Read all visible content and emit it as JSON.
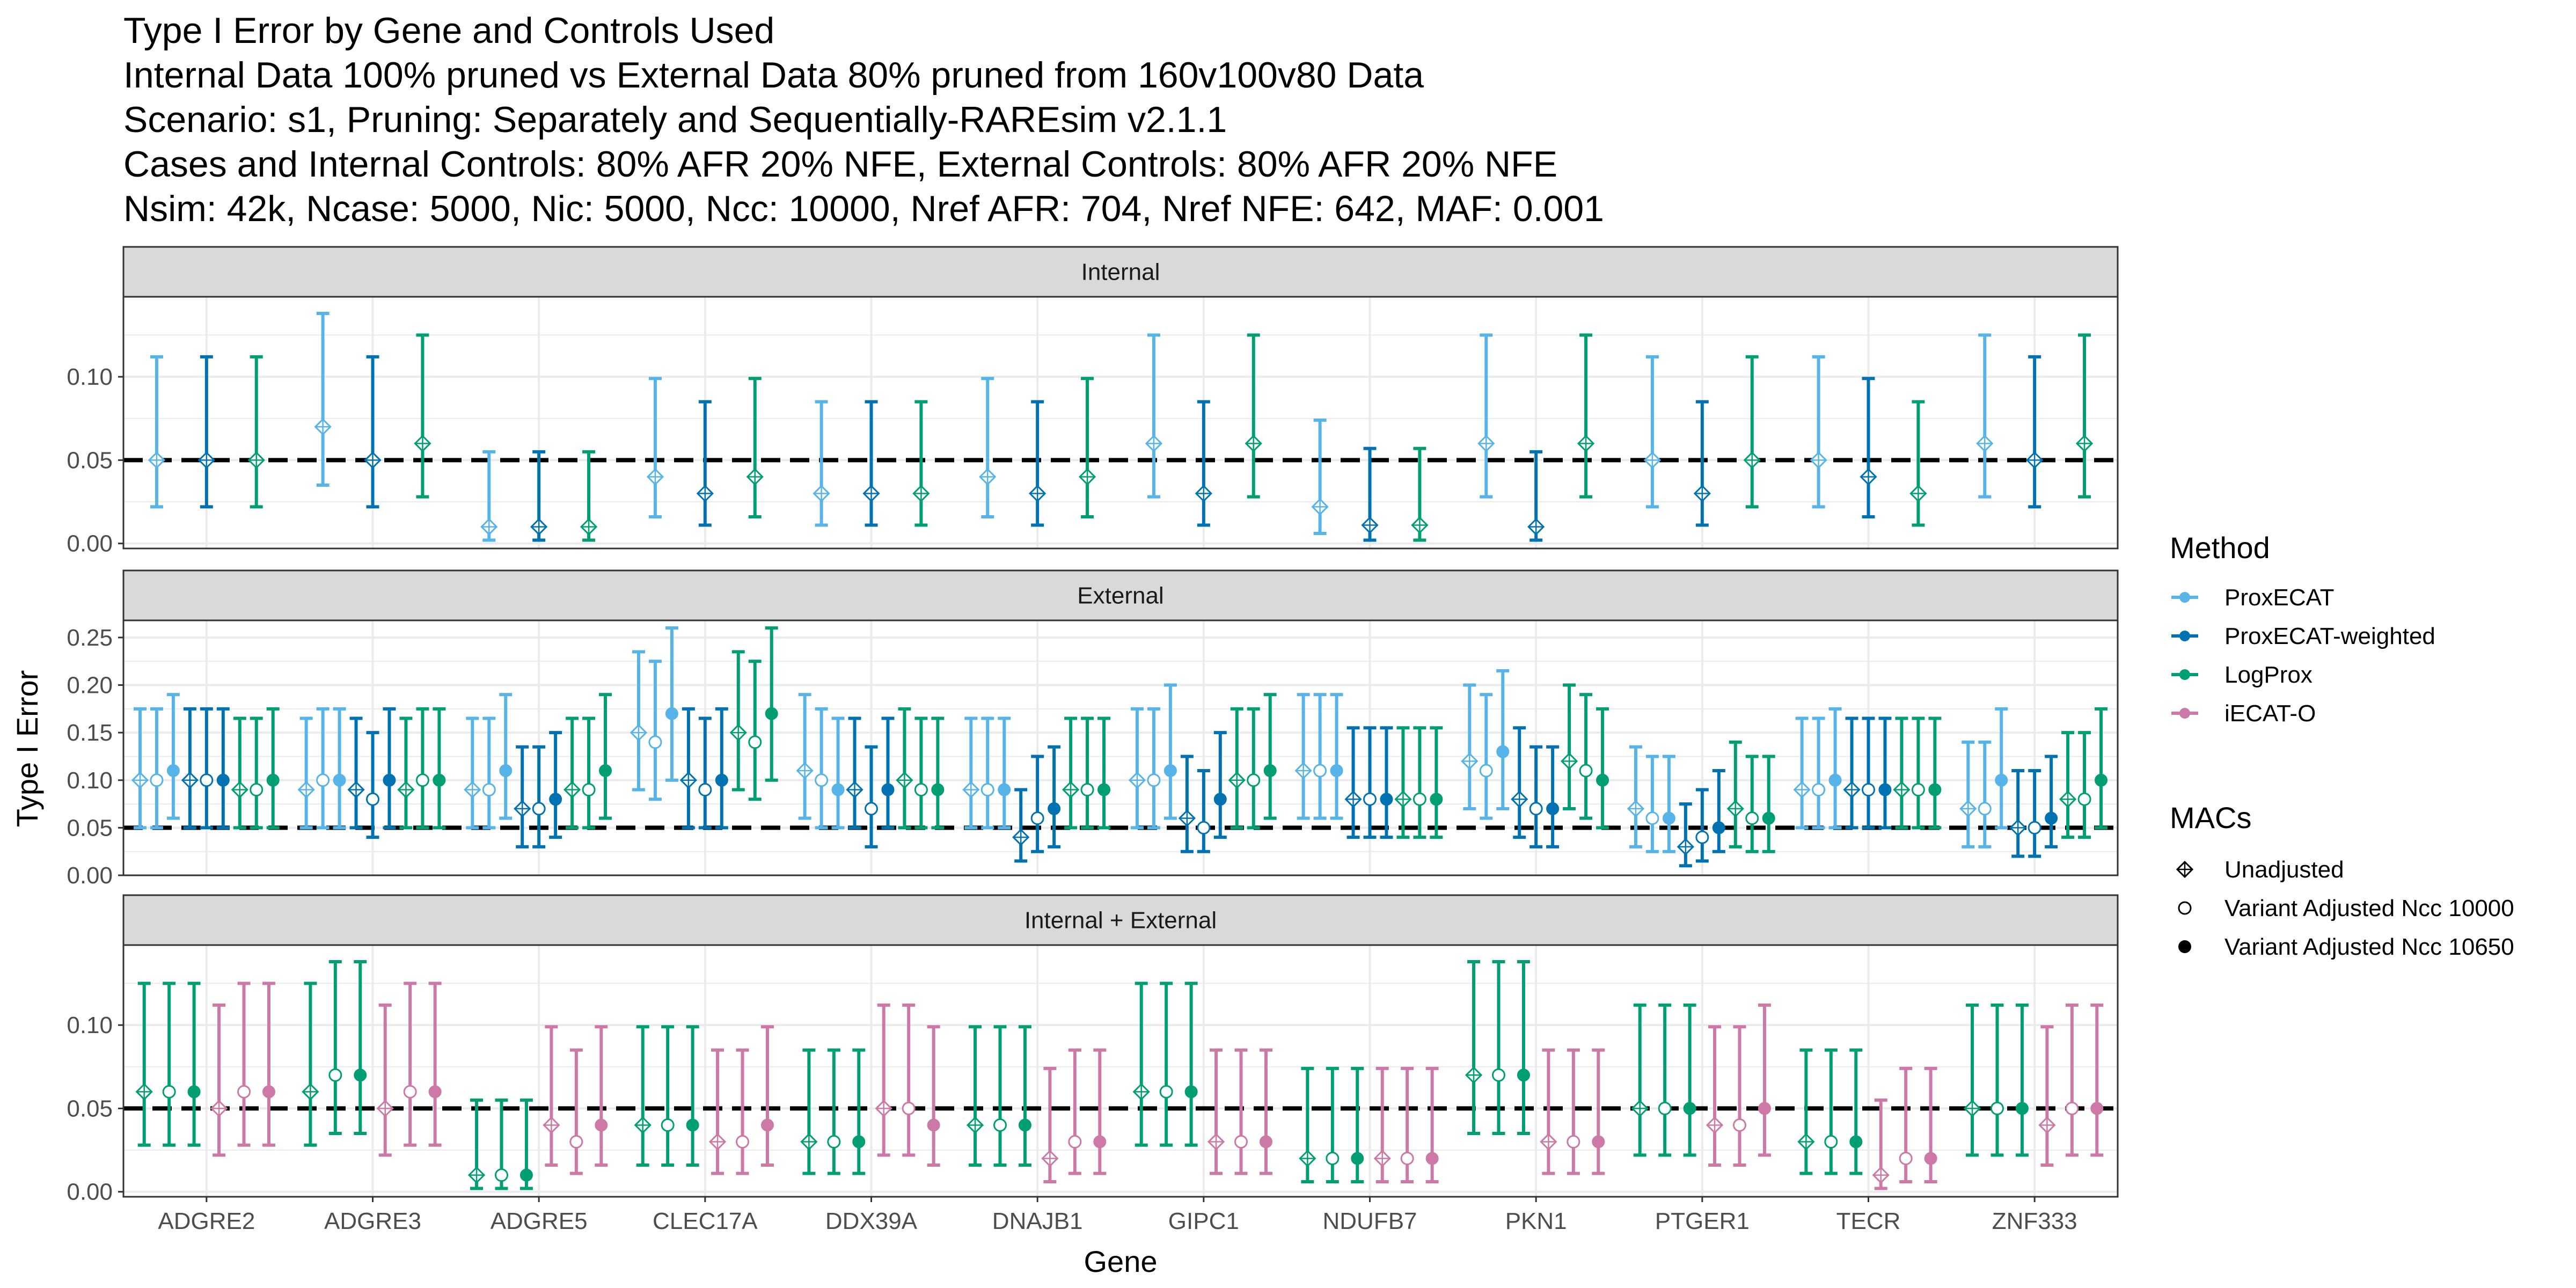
{
  "title_lines": [
    "Type I Error by Gene and Controls Used",
    "Internal Data 100% pruned vs External Data 80% pruned from 160v100v80 Data",
    "Scenario: s1, Pruning: Separately and Sequentially-RAREsim v2.1.1",
    "Cases and Internal Controls: 80% AFR 20% NFE, External Controls: 80% AFR 20% NFE",
    "Nsim: 42k, Ncase: 5000, Nic: 5000, Ncc: 10000, Nref AFR: 704, Nref NFE: 642, MAF: 0.001"
  ],
  "colors": {
    "ProxECAT": "#56B4E9",
    "ProxECAT-weighted": "#0072B2",
    "LogProx": "#009E73",
    "iECAT-O": "#CC79A7",
    "reference_line": "#000000",
    "strip_fill": "#d9d9d9",
    "grid": "#ebebeb"
  },
  "chart_data": {
    "type": "errorbar",
    "xlabel": "Gene",
    "ylabel": "Type I Error",
    "reference_line": 0.05,
    "reference_style": "dashed",
    "grid": true,
    "genes": [
      "ADGRE2",
      "ADGRE3",
      "ADGRE5",
      "CLEC17A",
      "DDX39A",
      "DNAJB1",
      "GIPC1",
      "NDUFB7",
      "PKN1",
      "PTGER1",
      "TECR",
      "ZNF333"
    ],
    "macs": [
      "Unadjusted",
      "Variant Adjusted Ncc 10000",
      "Variant Adjusted Ncc 10650"
    ],
    "mac_shapes": [
      "diamond-plus",
      "open-circle",
      "filled-circle"
    ],
    "legend": {
      "position": "right",
      "method_title": "Method",
      "methods": [
        "ProxECAT",
        "ProxECAT-weighted",
        "LogProx",
        "iECAT-O"
      ],
      "mac_title": "MACs"
    },
    "panels": [
      {
        "strip": "Internal",
        "ylim": [
          -0.003,
          0.148
        ],
        "yticks": [
          0.0,
          0.05,
          0.1
        ],
        "ytick_labels": [
          "0.00",
          "0.05",
          "0.10"
        ],
        "methods": [
          "ProxECAT",
          "ProxECAT-weighted",
          "LogProx"
        ],
        "mac_indices": [
          0
        ],
        "est": [
          [
            0.05,
            0.05,
            0.05
          ],
          [
            0.07,
            0.05,
            0.06
          ],
          [
            0.01,
            0.01,
            0.01
          ],
          [
            0.04,
            0.03,
            0.04
          ],
          [
            0.03,
            0.03,
            0.03
          ],
          [
            0.04,
            0.03,
            0.04
          ],
          [
            0.06,
            0.03,
            0.06
          ],
          [
            0.022,
            0.011,
            0.011
          ],
          [
            0.06,
            0.01,
            0.06
          ],
          [
            0.05,
            0.03,
            0.05
          ],
          [
            0.05,
            0.04,
            0.03
          ],
          [
            0.06,
            0.05,
            0.06
          ]
        ],
        "low": [
          [
            0.022,
            0.022,
            0.022
          ],
          [
            0.035,
            0.022,
            0.028
          ],
          [
            0.002,
            0.002,
            0.002
          ],
          [
            0.016,
            0.011,
            0.016
          ],
          [
            0.011,
            0.011,
            0.011
          ],
          [
            0.016,
            0.011,
            0.016
          ],
          [
            0.028,
            0.011,
            0.028
          ],
          [
            0.006,
            0.002,
            0.002
          ],
          [
            0.028,
            0.002,
            0.028
          ],
          [
            0.022,
            0.011,
            0.022
          ],
          [
            0.022,
            0.016,
            0.011
          ],
          [
            0.028,
            0.022,
            0.028
          ]
        ],
        "high": [
          [
            0.112,
            0.112,
            0.112
          ],
          [
            0.138,
            0.112,
            0.125
          ],
          [
            0.055,
            0.055,
            0.055
          ],
          [
            0.099,
            0.085,
            0.099
          ],
          [
            0.085,
            0.085,
            0.085
          ],
          [
            0.099,
            0.085,
            0.099
          ],
          [
            0.125,
            0.085,
            0.125
          ],
          [
            0.074,
            0.057,
            0.057
          ],
          [
            0.125,
            0.055,
            0.125
          ],
          [
            0.112,
            0.085,
            0.112
          ],
          [
            0.112,
            0.099,
            0.085
          ],
          [
            0.125,
            0.112,
            0.125
          ]
        ]
      },
      {
        "strip": "External",
        "ylim": [
          0.0,
          0.268
        ],
        "yticks": [
          0.0,
          0.05,
          0.1,
          0.15,
          0.2,
          0.25
        ],
        "ytick_labels": [
          "0.00",
          "0.05",
          "0.10",
          "0.15",
          "0.20",
          "0.25"
        ],
        "methods": [
          "ProxECAT",
          "ProxECAT-weighted",
          "LogProx"
        ],
        "mac_indices": [
          0,
          1,
          2
        ],
        "est": [
          [
            0.1,
            0.1,
            0.11,
            0.1,
            0.1,
            0.1,
            0.09,
            0.09,
            0.1
          ],
          [
            0.09,
            0.1,
            0.1,
            0.09,
            0.08,
            0.1,
            0.09,
            0.1,
            0.1
          ],
          [
            0.09,
            0.09,
            0.11,
            0.07,
            0.07,
            0.08,
            0.09,
            0.09,
            0.11
          ],
          [
            0.15,
            0.14,
            0.17,
            0.1,
            0.09,
            0.1,
            0.15,
            0.14,
            0.17
          ],
          [
            0.11,
            0.1,
            0.09,
            0.09,
            0.07,
            0.09,
            0.1,
            0.09,
            0.09
          ],
          [
            0.09,
            0.09,
            0.09,
            0.04,
            0.06,
            0.07,
            0.09,
            0.09,
            0.09
          ],
          [
            0.1,
            0.1,
            0.11,
            0.06,
            0.05,
            0.08,
            0.1,
            0.1,
            0.11
          ],
          [
            0.11,
            0.11,
            0.11,
            0.08,
            0.08,
            0.08,
            0.08,
            0.08,
            0.08
          ],
          [
            0.12,
            0.11,
            0.13,
            0.08,
            0.07,
            0.07,
            0.12,
            0.11,
            0.1
          ],
          [
            0.07,
            0.06,
            0.06,
            0.03,
            0.04,
            0.05,
            0.07,
            0.06,
            0.06
          ],
          [
            0.09,
            0.09,
            0.1,
            0.09,
            0.09,
            0.09,
            0.09,
            0.09,
            0.09
          ],
          [
            0.07,
            0.07,
            0.1,
            0.05,
            0.05,
            0.06,
            0.08,
            0.08,
            0.1
          ]
        ],
        "low": [
          [
            0.05,
            0.05,
            0.06,
            0.05,
            0.05,
            0.05,
            0.05,
            0.05,
            0.05
          ],
          [
            0.05,
            0.05,
            0.05,
            0.05,
            0.04,
            0.05,
            0.05,
            0.05,
            0.05
          ],
          [
            0.05,
            0.05,
            0.06,
            0.03,
            0.03,
            0.04,
            0.05,
            0.05,
            0.06
          ],
          [
            0.09,
            0.08,
            0.1,
            0.05,
            0.05,
            0.05,
            0.09,
            0.08,
            0.1
          ],
          [
            0.06,
            0.05,
            0.05,
            0.05,
            0.03,
            0.05,
            0.05,
            0.05,
            0.05
          ],
          [
            0.05,
            0.05,
            0.05,
            0.015,
            0.025,
            0.03,
            0.05,
            0.05,
            0.05
          ],
          [
            0.05,
            0.05,
            0.06,
            0.025,
            0.025,
            0.04,
            0.05,
            0.05,
            0.06
          ],
          [
            0.06,
            0.06,
            0.06,
            0.04,
            0.04,
            0.04,
            0.04,
            0.04,
            0.04
          ],
          [
            0.07,
            0.06,
            0.07,
            0.04,
            0.03,
            0.03,
            0.07,
            0.06,
            0.05
          ],
          [
            0.03,
            0.025,
            0.025,
            0.01,
            0.015,
            0.025,
            0.03,
            0.025,
            0.025
          ],
          [
            0.05,
            0.05,
            0.05,
            0.05,
            0.05,
            0.05,
            0.05,
            0.05,
            0.05
          ],
          [
            0.03,
            0.03,
            0.05,
            0.02,
            0.02,
            0.03,
            0.04,
            0.04,
            0.05
          ]
        ],
        "high": [
          [
            0.175,
            0.175,
            0.19,
            0.175,
            0.175,
            0.175,
            0.165,
            0.165,
            0.175
          ],
          [
            0.165,
            0.175,
            0.175,
            0.165,
            0.15,
            0.175,
            0.165,
            0.175,
            0.175
          ],
          [
            0.165,
            0.165,
            0.19,
            0.135,
            0.135,
            0.15,
            0.165,
            0.165,
            0.19
          ],
          [
            0.235,
            0.225,
            0.26,
            0.175,
            0.165,
            0.175,
            0.235,
            0.225,
            0.26
          ],
          [
            0.19,
            0.175,
            0.165,
            0.165,
            0.135,
            0.165,
            0.175,
            0.165,
            0.165
          ],
          [
            0.165,
            0.165,
            0.165,
            0.09,
            0.125,
            0.135,
            0.165,
            0.165,
            0.165
          ],
          [
            0.175,
            0.175,
            0.2,
            0.125,
            0.11,
            0.15,
            0.175,
            0.175,
            0.19
          ],
          [
            0.19,
            0.19,
            0.19,
            0.155,
            0.155,
            0.155,
            0.155,
            0.155,
            0.155
          ],
          [
            0.2,
            0.19,
            0.215,
            0.155,
            0.135,
            0.135,
            0.2,
            0.19,
            0.175
          ],
          [
            0.135,
            0.125,
            0.125,
            0.075,
            0.09,
            0.11,
            0.14,
            0.125,
            0.125
          ],
          [
            0.165,
            0.165,
            0.175,
            0.165,
            0.165,
            0.165,
            0.165,
            0.165,
            0.165
          ],
          [
            0.14,
            0.14,
            0.175,
            0.11,
            0.11,
            0.125,
            0.15,
            0.15,
            0.175
          ]
        ]
      },
      {
        "strip": "Internal + External",
        "ylim": [
          -0.003,
          0.148
        ],
        "yticks": [
          0.0,
          0.05,
          0.1
        ],
        "ytick_labels": [
          "0.00",
          "0.05",
          "0.10"
        ],
        "methods": [
          "LogProx",
          "iECAT-O"
        ],
        "mac_indices": [
          0,
          1,
          2
        ],
        "est": [
          [
            0.06,
            0.06,
            0.06,
            0.05,
            0.06,
            0.06
          ],
          [
            0.06,
            0.07,
            0.07,
            0.05,
            0.06,
            0.06
          ],
          [
            0.01,
            0.01,
            0.01,
            0.04,
            0.03,
            0.04
          ],
          [
            0.04,
            0.04,
            0.04,
            0.03,
            0.03,
            0.04
          ],
          [
            0.03,
            0.03,
            0.03,
            0.05,
            0.05,
            0.04
          ],
          [
            0.04,
            0.04,
            0.04,
            0.02,
            0.03,
            0.03
          ],
          [
            0.06,
            0.06,
            0.06,
            0.03,
            0.03,
            0.03
          ],
          [
            0.02,
            0.02,
            0.02,
            0.02,
            0.02,
            0.02
          ],
          [
            0.07,
            0.07,
            0.07,
            0.03,
            0.03,
            0.03
          ],
          [
            0.05,
            0.05,
            0.05,
            0.04,
            0.04,
            0.05
          ],
          [
            0.03,
            0.03,
            0.03,
            0.01,
            0.02,
            0.02
          ],
          [
            0.05,
            0.05,
            0.05,
            0.04,
            0.05,
            0.05
          ]
        ],
        "low": [
          [
            0.028,
            0.028,
            0.028,
            0.022,
            0.028,
            0.028
          ],
          [
            0.028,
            0.035,
            0.035,
            0.022,
            0.028,
            0.028
          ],
          [
            0.002,
            0.002,
            0.002,
            0.016,
            0.011,
            0.016
          ],
          [
            0.016,
            0.016,
            0.016,
            0.011,
            0.011,
            0.016
          ],
          [
            0.011,
            0.011,
            0.011,
            0.022,
            0.022,
            0.016
          ],
          [
            0.016,
            0.016,
            0.016,
            0.006,
            0.011,
            0.011
          ],
          [
            0.028,
            0.028,
            0.028,
            0.011,
            0.011,
            0.011
          ],
          [
            0.006,
            0.006,
            0.006,
            0.006,
            0.006,
            0.006
          ],
          [
            0.035,
            0.035,
            0.035,
            0.011,
            0.011,
            0.011
          ],
          [
            0.022,
            0.022,
            0.022,
            0.016,
            0.016,
            0.022
          ],
          [
            0.011,
            0.011,
            0.011,
            0.002,
            0.006,
            0.006
          ],
          [
            0.022,
            0.022,
            0.022,
            0.016,
            0.022,
            0.022
          ]
        ],
        "high": [
          [
            0.125,
            0.125,
            0.125,
            0.112,
            0.125,
            0.125
          ],
          [
            0.125,
            0.138,
            0.138,
            0.112,
            0.125,
            0.125
          ],
          [
            0.055,
            0.055,
            0.055,
            0.099,
            0.085,
            0.099
          ],
          [
            0.099,
            0.099,
            0.099,
            0.085,
            0.085,
            0.099
          ],
          [
            0.085,
            0.085,
            0.085,
            0.112,
            0.112,
            0.099
          ],
          [
            0.099,
            0.099,
            0.099,
            0.074,
            0.085,
            0.085
          ],
          [
            0.125,
            0.125,
            0.125,
            0.085,
            0.085,
            0.085
          ],
          [
            0.074,
            0.074,
            0.074,
            0.074,
            0.074,
            0.074
          ],
          [
            0.138,
            0.138,
            0.138,
            0.085,
            0.085,
            0.085
          ],
          [
            0.112,
            0.112,
            0.112,
            0.099,
            0.099,
            0.112
          ],
          [
            0.085,
            0.085,
            0.085,
            0.055,
            0.074,
            0.074
          ],
          [
            0.112,
            0.112,
            0.112,
            0.099,
            0.112,
            0.112
          ]
        ]
      }
    ]
  }
}
